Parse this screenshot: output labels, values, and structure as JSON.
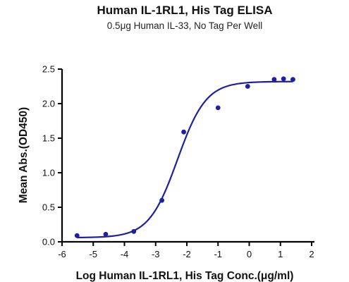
{
  "chart_data": {
    "type": "scatter",
    "title": "Human IL-1RL1, His Tag ELISA",
    "subtitle": "0.5μg Human IL-33, No Tag Per Well",
    "xlabel": "Log Human IL-1RL1, His Tag Conc.(μg/ml)",
    "ylabel": "Mean Abs.(OD450)",
    "xlim": [
      -6,
      2
    ],
    "ylim": [
      0,
      2.5
    ],
    "xticks": [
      "-6",
      "-5",
      "-4",
      "-3",
      "-2",
      "-1",
      "0",
      "1",
      "2"
    ],
    "yticks": [
      "0.0",
      "0.5",
      "1.0",
      "1.5",
      "2.0",
      "2.5"
    ],
    "grid": false,
    "colors": {
      "series": "#1f1fa0"
    },
    "series": [
      {
        "x": [
          -5.52,
          -4.6,
          -3.7,
          -2.8,
          -2.1,
          -1.0,
          -0.05,
          0.8,
          1.1,
          1.4
        ],
        "y": [
          0.09,
          0.11,
          0.15,
          0.6,
          1.59,
          1.94,
          2.25,
          2.35,
          2.36,
          2.35
        ]
      }
    ],
    "fit": {
      "type": "4PL",
      "bottom": 0.06,
      "top": 2.32,
      "log_ec50": -2.3,
      "hill_slope": 0.95
    }
  }
}
